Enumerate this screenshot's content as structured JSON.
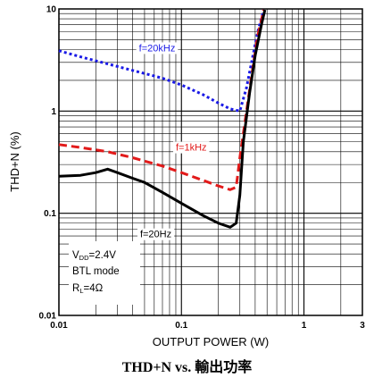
{
  "chart_data": {
    "type": "line",
    "title": "",
    "xlabel": "OUTPUT POWER (W)",
    "ylabel": "THD+N (%)",
    "x_scale": "log",
    "y_scale": "log",
    "xlim": [
      0.01,
      3
    ],
    "ylim": [
      0.01,
      10
    ],
    "grid": true,
    "x_tick_labels": [
      "0.01",
      "0.1",
      "1",
      "3"
    ],
    "y_tick_labels": [
      "0.01",
      "0.1",
      "1",
      "10"
    ],
    "series": [
      {
        "name": "f=20kHz",
        "color": "#1a1ae6",
        "dash": "dotted",
        "x": [
          0.01,
          0.015,
          0.025,
          0.04,
          0.07,
          0.1,
          0.15,
          0.2,
          0.25,
          0.3,
          0.34,
          0.38,
          0.42,
          0.47
        ],
        "y": [
          3.9,
          3.4,
          2.9,
          2.5,
          2.1,
          1.8,
          1.45,
          1.2,
          1.05,
          1.0,
          1.7,
          3.3,
          6.0,
          9.8
        ]
      },
      {
        "name": "f=1kHz",
        "color": "#e21a1a",
        "dash": "dashed",
        "x": [
          0.01,
          0.015,
          0.025,
          0.04,
          0.07,
          0.1,
          0.15,
          0.2,
          0.25,
          0.28,
          0.3,
          0.34,
          0.38,
          0.42,
          0.47
        ],
        "y": [
          0.47,
          0.44,
          0.4,
          0.35,
          0.29,
          0.25,
          0.21,
          0.185,
          0.17,
          0.18,
          0.35,
          1.0,
          2.5,
          5.5,
          9.8
        ]
      },
      {
        "name": "f=20Hz",
        "color": "#000000",
        "dash": "solid",
        "x": [
          0.01,
          0.015,
          0.02,
          0.025,
          0.03,
          0.04,
          0.05,
          0.07,
          0.1,
          0.15,
          0.2,
          0.25,
          0.28,
          0.3,
          0.32,
          0.36,
          0.4,
          0.45,
          0.48
        ],
        "y": [
          0.23,
          0.235,
          0.25,
          0.27,
          0.25,
          0.22,
          0.2,
          0.16,
          0.125,
          0.095,
          0.08,
          0.073,
          0.08,
          0.15,
          0.5,
          1.5,
          3.5,
          7.0,
          9.8
        ]
      }
    ],
    "annotations": [
      {
        "text": "f=20kHz",
        "color": "#1a1ae6",
        "x": 0.045,
        "y": 3.85
      },
      {
        "text": "f=1kHz",
        "color": "#e21a1a",
        "x": 0.09,
        "y": 0.41
      },
      {
        "text": "f=20Hz",
        "color": "#000000",
        "x": 0.046,
        "y": 0.058
      }
    ],
    "conditions": {
      "vdd_symbol": "V",
      "vdd_sub": "DD",
      "vdd_value": "=2.4V",
      "mode": "BTL mode",
      "rl_symbol": "R",
      "rl_sub": "L",
      "rl_value": "=4Ω"
    }
  },
  "caption": {
    "prefix": "THD+N vs. ",
    "cjk": "輸出功率"
  }
}
